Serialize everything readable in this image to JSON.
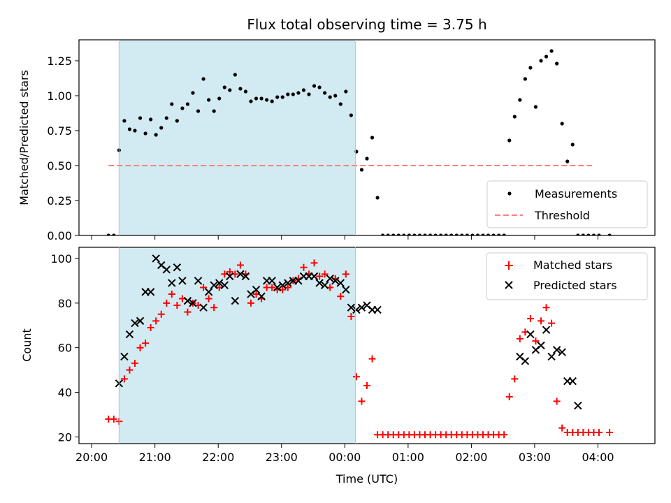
{
  "chart_data": [
    {
      "type": "scatter",
      "panel": "top",
      "title": "Flux total observing time = 3.75 h",
      "xlabel": "",
      "ylabel": "Matched/Predicted stars",
      "ylim": [
        0,
        1.4
      ],
      "yticks": [
        0.0,
        0.25,
        0.5,
        0.75,
        1.0,
        1.25
      ],
      "ytick_labels": [
        "0.00",
        "0.25",
        "0.50",
        "0.75",
        "1.00",
        "1.25"
      ],
      "shaded_span": [
        "20:26",
        "00:10"
      ],
      "shaded_color": "#add8e6",
      "legend_position": "lower-right",
      "series": [
        {
          "name": "Measurements",
          "marker": "dot",
          "color": "#000000",
          "x": [
            "20:16",
            "20:21",
            "20:26",
            "20:31",
            "20:36",
            "20:41",
            "20:46",
            "20:51",
            "20:56",
            "21:01",
            "21:06",
            "21:11",
            "21:16",
            "21:21",
            "21:26",
            "21:31",
            "21:36",
            "21:41",
            "21:46",
            "21:51",
            "21:56",
            "22:01",
            "22:06",
            "22:11",
            "22:16",
            "22:21",
            "22:26",
            "22:31",
            "22:36",
            "22:41",
            "22:46",
            "22:51",
            "22:56",
            "23:01",
            "23:06",
            "23:11",
            "23:16",
            "23:21",
            "23:26",
            "23:31",
            "23:36",
            "23:41",
            "23:46",
            "23:51",
            "23:56",
            "00:01",
            "00:06",
            "00:11",
            "00:16",
            "00:21",
            "00:26",
            "00:31",
            "00:36",
            "00:41",
            "00:46",
            "00:51",
            "00:56",
            "01:01",
            "01:06",
            "01:11",
            "01:16",
            "01:21",
            "01:26",
            "01:31",
            "01:36",
            "01:41",
            "01:46",
            "01:51",
            "01:56",
            "02:01",
            "02:06",
            "02:11",
            "02:16",
            "02:21",
            "02:26",
            "02:31",
            "02:36",
            "02:41",
            "02:46",
            "02:51",
            "02:56",
            "03:01",
            "03:06",
            "03:11",
            "03:16",
            "03:21",
            "03:26",
            "03:31",
            "03:36",
            "03:41",
            "03:46",
            "03:51",
            "03:56",
            "04:01",
            "04:11"
          ],
          "values": [
            0.0,
            0.0,
            0.61,
            0.82,
            0.76,
            0.75,
            0.84,
            0.73,
            0.83,
            0.72,
            0.77,
            0.84,
            0.94,
            0.82,
            0.91,
            0.94,
            1.02,
            0.89,
            1.12,
            0.97,
            0.89,
            0.98,
            1.06,
            1.04,
            1.15,
            1.05,
            1.03,
            0.96,
            0.98,
            0.98,
            0.97,
            0.96,
            0.99,
            0.99,
            1.01,
            1.01,
            1.02,
            1.04,
            1.01,
            1.07,
            1.06,
            1.02,
            0.99,
            1.0,
            0.94,
            1.03,
            0.86,
            0.6,
            0.47,
            0.55,
            0.7,
            0.27,
            0.0,
            0.0,
            0.0,
            0.0,
            0.0,
            0.0,
            0.0,
            0.0,
            0.0,
            0.0,
            0.0,
            0.0,
            0.0,
            0.0,
            0.0,
            0.0,
            0.0,
            0.0,
            0.0,
            0.0,
            0.0,
            0.0,
            0.0,
            0.0,
            0.68,
            0.85,
            0.97,
            1.12,
            1.2,
            0.92,
            1.25,
            1.28,
            1.32,
            1.23,
            0.8,
            0.53,
            0.65,
            0.0,
            0.0,
            0.0,
            0.0,
            0.0,
            0.0
          ]
        },
        {
          "name": "Threshold",
          "marker": "dashed-line",
          "color": "#ff7f7f",
          "x": [
            "20:16",
            "03:56"
          ],
          "values": [
            0.5,
            0.5
          ]
        }
      ]
    },
    {
      "type": "scatter",
      "panel": "bottom",
      "title": "",
      "xlabel": "Time (UTC)",
      "ylabel": "Count",
      "ylim": [
        17,
        105
      ],
      "yticks": [
        20,
        40,
        60,
        80,
        100
      ],
      "ytick_labels": [
        "20",
        "40",
        "60",
        "80",
        "100"
      ],
      "xticks": [
        "20:00",
        "21:00",
        "22:00",
        "23:00",
        "00:00",
        "01:00",
        "02:00",
        "03:00",
        "04:00"
      ],
      "shaded_span": [
        "20:26",
        "00:10"
      ],
      "shaded_color": "#add8e6",
      "legend_position": "upper-right",
      "series": [
        {
          "name": "Matched stars",
          "marker": "plus",
          "color": "#ff0000",
          "x": [
            "20:16",
            "20:21",
            "20:26",
            "20:31",
            "20:36",
            "20:41",
            "20:46",
            "20:51",
            "20:56",
            "21:01",
            "21:06",
            "21:11",
            "21:16",
            "21:21",
            "21:26",
            "21:31",
            "21:36",
            "21:41",
            "21:46",
            "21:51",
            "21:56",
            "22:01",
            "22:06",
            "22:11",
            "22:16",
            "22:21",
            "22:26",
            "22:31",
            "22:36",
            "22:41",
            "22:46",
            "22:51",
            "22:56",
            "23:01",
            "23:06",
            "23:11",
            "23:16",
            "23:21",
            "23:26",
            "23:31",
            "23:36",
            "23:41",
            "23:46",
            "23:51",
            "23:56",
            "00:01",
            "00:06",
            "00:11",
            "00:16",
            "00:21",
            "00:26",
            "00:31",
            "00:36",
            "00:41",
            "00:46",
            "00:51",
            "00:56",
            "01:01",
            "01:06",
            "01:11",
            "01:16",
            "01:21",
            "01:26",
            "01:31",
            "01:36",
            "01:41",
            "01:46",
            "01:51",
            "01:56",
            "02:01",
            "02:06",
            "02:11",
            "02:16",
            "02:21",
            "02:26",
            "02:31",
            "02:36",
            "02:41",
            "02:46",
            "02:51",
            "02:56",
            "03:01",
            "03:06",
            "03:11",
            "03:16",
            "03:21",
            "03:26",
            "03:31",
            "03:36",
            "03:41",
            "03:46",
            "03:51",
            "03:56",
            "04:01",
            "04:11"
          ],
          "values": [
            28,
            28,
            27,
            46,
            50,
            53,
            60,
            62,
            69,
            72,
            75,
            80,
            84,
            79,
            82,
            76,
            80,
            79,
            87,
            82,
            78,
            87,
            93,
            94,
            93,
            97,
            93,
            80,
            84,
            82,
            87,
            87,
            86,
            86,
            87,
            90,
            91,
            96,
            93,
            98,
            92,
            93,
            87,
            91,
            83,
            93,
            74,
            47,
            36,
            43,
            55,
            21,
            21,
            21,
            21,
            21,
            21,
            21,
            21,
            21,
            21,
            21,
            21,
            21,
            21,
            21,
            21,
            21,
            21,
            21,
            21,
            21,
            21,
            21,
            21,
            21,
            38,
            46,
            64,
            67,
            73,
            63,
            72,
            78,
            71,
            36,
            24,
            22,
            22,
            22,
            22,
            22,
            22,
            22,
            22
          ]
        },
        {
          "name": "Predicted stars",
          "marker": "x",
          "color": "#000000",
          "x": [
            "20:26",
            "20:31",
            "20:36",
            "20:41",
            "20:46",
            "20:51",
            "20:56",
            "21:01",
            "21:06",
            "21:11",
            "21:16",
            "21:21",
            "21:26",
            "21:31",
            "21:36",
            "21:41",
            "21:46",
            "21:51",
            "21:56",
            "22:01",
            "22:06",
            "22:11",
            "22:16",
            "22:21",
            "22:26",
            "22:31",
            "22:36",
            "22:41",
            "22:46",
            "22:51",
            "22:56",
            "23:01",
            "23:06",
            "23:11",
            "23:16",
            "23:21",
            "23:26",
            "23:31",
            "23:36",
            "23:41",
            "23:46",
            "23:51",
            "23:56",
            "00:01",
            "00:06",
            "00:11",
            "00:16",
            "00:21",
            "00:26",
            "00:31",
            "02:46",
            "02:51",
            "02:56",
            "03:01",
            "03:06",
            "03:11",
            "03:16",
            "03:21",
            "03:26",
            "03:31",
            "03:36",
            "03:41"
          ],
          "values": [
            44,
            56,
            66,
            71,
            72,
            85,
            85,
            100,
            97,
            95,
            89,
            96,
            90,
            81,
            80,
            90,
            78,
            85,
            88,
            89,
            88,
            92,
            81,
            93,
            92,
            84,
            86,
            83,
            90,
            90,
            87,
            88,
            89,
            90,
            90,
            92,
            92,
            92,
            89,
            88,
            91,
            90,
            89,
            86,
            78,
            77,
            78,
            79,
            77,
            77,
            56,
            54,
            66,
            59,
            61,
            68,
            56,
            59,
            58,
            45,
            45,
            34
          ]
        }
      ]
    }
  ]
}
